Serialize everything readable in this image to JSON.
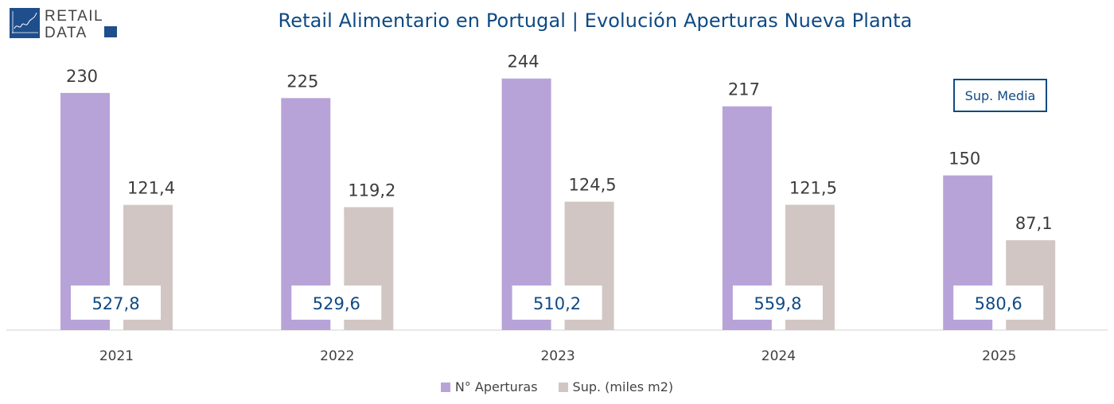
{
  "logo": {
    "line1": "RETAIL",
    "line2": "DATA"
  },
  "title": "Retail Alimentario en Portugal | Evolución Aperturas Nueva Planta",
  "annotation_box": "Sup. Media",
  "colors": {
    "aperturas": "#b7a3d8",
    "superficie": "#d2c6c4",
    "accent": "#0f4a83"
  },
  "chart_data": {
    "type": "bar",
    "title": "Retail Alimentario en Portugal | Evolución Aperturas Nueva Planta",
    "xlabel": "",
    "ylabel": "",
    "categories": [
      "2021",
      "2022",
      "2023",
      "2024",
      "2025"
    ],
    "series": [
      {
        "name": "N° Aperturas",
        "values": [
          230,
          225,
          244,
          217,
          150
        ],
        "labels": [
          "230",
          "225",
          "244",
          "217",
          "150"
        ]
      },
      {
        "name": "Sup. (miles m2)",
        "values": [
          121.4,
          119.2,
          124.5,
          121.5,
          87.1
        ],
        "labels": [
          "121,4",
          "119,2",
          "124,5",
          "121,5",
          "87,1"
        ]
      }
    ],
    "sup_media": {
      "label": "Sup. Media",
      "values": [
        527.8,
        529.6,
        510.2,
        559.8,
        580.6
      ],
      "labels": [
        "527,8",
        "529,6",
        "510,2",
        "559,8",
        "580,6"
      ]
    },
    "ylim": [
      0,
      270
    ],
    "grid": false,
    "legend": "bottom-center"
  }
}
